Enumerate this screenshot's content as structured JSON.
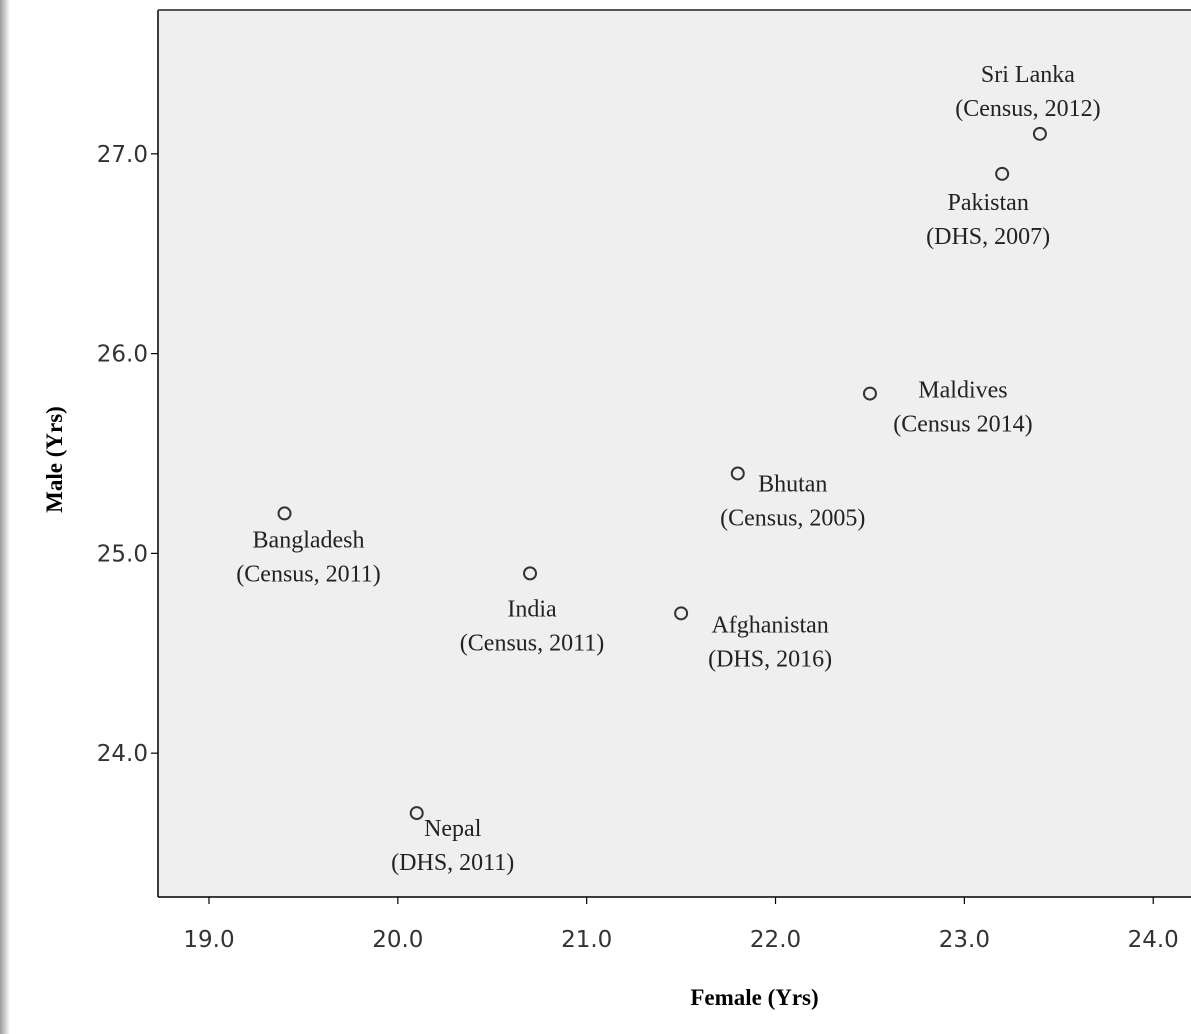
{
  "chart_data": {
    "type": "scatter",
    "xlabel": "Female (Yrs)",
    "ylabel": "Male (Yrs)",
    "xlim": [
      18.73,
      24.2
    ],
    "ylim": [
      23.28,
      27.72
    ],
    "x_ticks": [
      "19.0",
      "20.0",
      "21.0",
      "22.0",
      "23.0",
      "24.0"
    ],
    "y_ticks": [
      "24.0",
      "25.0",
      "26.0",
      "27.0"
    ],
    "grid": false,
    "legend": "none",
    "colors": {
      "plot_background": "#efefef",
      "marker_stroke": "#333333",
      "axis": "#000000"
    },
    "points": [
      {
        "x": 23.4,
        "y": 27.1,
        "line1": "Sri Lanka",
        "line2": "(Census, 2012)"
      },
      {
        "x": 23.2,
        "y": 26.9,
        "line1": "Pakistan",
        "line2": "(DHS, 2007)"
      },
      {
        "x": 22.5,
        "y": 25.8,
        "line1": "Maldives",
        "line2": "(Census 2014)"
      },
      {
        "x": 21.8,
        "y": 25.4,
        "line1": "Bhutan",
        "line2": "(Census, 2005)"
      },
      {
        "x": 19.4,
        "y": 25.2,
        "line1": "Bangladesh",
        "line2": "(Census, 2011)"
      },
      {
        "x": 20.7,
        "y": 24.9,
        "line1": "India",
        "line2": "(Census, 2011)"
      },
      {
        "x": 21.5,
        "y": 24.7,
        "line1": "Afghanistan",
        "line2": "(DHS, 2016)"
      },
      {
        "x": 20.1,
        "y": 23.7,
        "line1": "Nepal",
        "line2": "(DHS, 2011)"
      }
    ]
  }
}
